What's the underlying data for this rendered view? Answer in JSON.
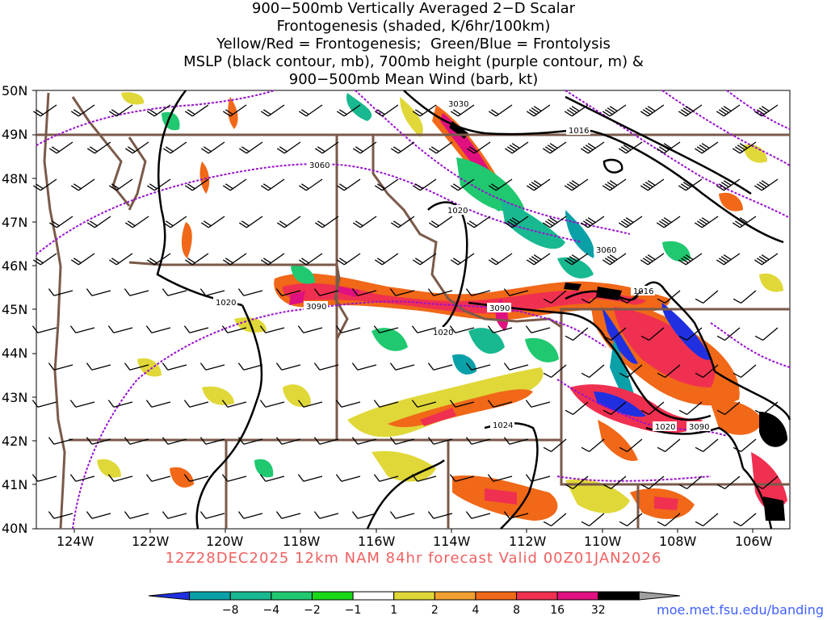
{
  "title_lines": [
    "900−500mb Vertically Averaged 2−D Scalar",
    "Frontogenesis (shaded, K/6hr/100km)",
    "Yellow/Red = Frontogenesis;  Green/Blue = Frontolysis",
    "MSLP (black contour, mb), 700mb height (purple contour, m) &",
    "900−500mb Mean Wind (barb, kt)"
  ],
  "lat_labels": [
    "50N",
    "49N",
    "48N",
    "47N",
    "46N",
    "45N",
    "44N",
    "43N",
    "42N",
    "41N",
    "40N"
  ],
  "lon_labels": [
    "124W",
    "122W",
    "120W",
    "118W",
    "116W",
    "114W",
    "112W",
    "110W",
    "108W",
    "106W"
  ],
  "contour_labels": {
    "h3030": "3030",
    "h3060a": "3060",
    "h3060b": "3060",
    "h3090a": "3090",
    "h3090b": "3090",
    "h3090c": "3090",
    "p1016a": "1016",
    "p1016b": "1016",
    "p1020a": "1020",
    "p1020b": "1020",
    "p1020c": "1020",
    "p1020d": "1020",
    "p1024": "1024"
  },
  "valid_text": "12Z28DEC2025 12km NAM 84hr forecast Valid 00Z01JAN2026",
  "credit": "moe.met.fsu.edu/banding",
  "colorbar": {
    "ticks": [
      "−8",
      "−4",
      "−2",
      "−1",
      "1",
      "2",
      "4",
      "8",
      "16",
      "32"
    ],
    "colors": [
      "#2030e0",
      "#0aa0a8",
      "#18b890",
      "#20c870",
      "#18d818",
      "#ffffff",
      "#e0d838",
      "#f0a030",
      "#f06818",
      "#f03050",
      "#e01080",
      "#000000",
      "#a0a0a0"
    ]
  },
  "colors": {
    "pressure_contour": "#000000",
    "height_contour": "#9a10d0",
    "borders": "#7a5a4a",
    "wind_barbs": "#000000"
  }
}
